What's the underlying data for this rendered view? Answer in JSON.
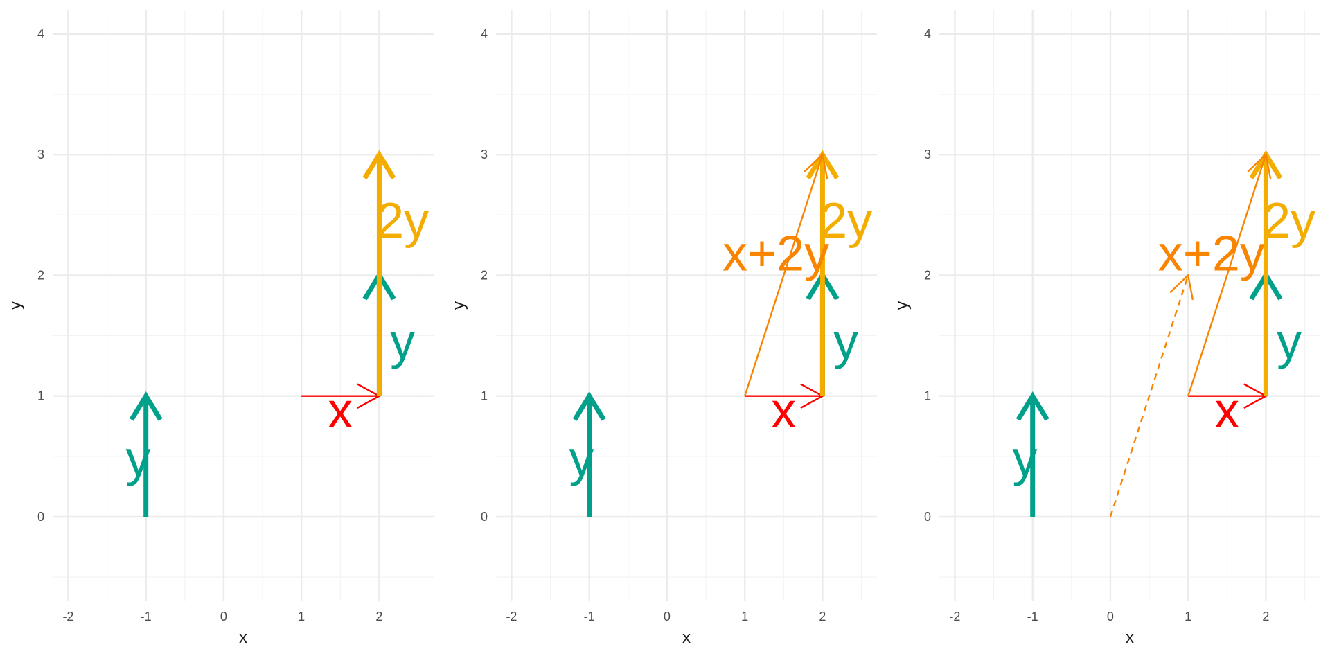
{
  "colors": {
    "x_vector": "#ff0000",
    "y_vector": "#00a08a",
    "two_y_vector": "#f2ad00",
    "sum_vector": "#f98400",
    "grid_major": "#ebebeb",
    "grid_minor": "#f3f3f3",
    "tick_text": "#4d4d4d",
    "axis_title": "#1a1a1a"
  },
  "chart_data": [
    {
      "type": "vector",
      "xlabel": "x",
      "ylabel": "y",
      "xlim": [
        -2.2,
        2.7
      ],
      "ylim": [
        -0.7,
        4.2
      ],
      "x_ticks": [
        "-2",
        "-1",
        "0",
        "1",
        "2"
      ],
      "y_ticks": [
        "0",
        "1",
        "2",
        "3",
        "4"
      ],
      "grid": true,
      "vectors": [
        {
          "label": "y",
          "from": [
            -1,
            0
          ],
          "to": [
            -1,
            1
          ],
          "color_key": "y_vector",
          "style": "thick",
          "label_pos": [
            -1.1,
            0.45
          ]
        },
        {
          "label": "x",
          "from": [
            1,
            1
          ],
          "to": [
            2,
            1
          ],
          "color_key": "x_vector",
          "style": "thin",
          "label_pos": [
            1.5,
            0.85
          ]
        },
        {
          "label": "y",
          "from": [
            2,
            1
          ],
          "to": [
            2,
            2
          ],
          "color_key": "y_vector",
          "style": "thick",
          "label_pos": [
            2.3,
            1.42
          ]
        },
        {
          "label": "2y",
          "from": [
            2,
            1
          ],
          "to": [
            2,
            3
          ],
          "color_key": "two_y_vector",
          "style": "thick",
          "label_pos": [
            2.3,
            2.42
          ]
        }
      ]
    },
    {
      "type": "vector",
      "xlabel": "x",
      "ylabel": "y",
      "xlim": [
        -2.2,
        2.7
      ],
      "ylim": [
        -0.7,
        4.2
      ],
      "x_ticks": [
        "-2",
        "-1",
        "0",
        "1",
        "2"
      ],
      "y_ticks": [
        "0",
        "1",
        "2",
        "3",
        "4"
      ],
      "grid": true,
      "vectors": [
        {
          "label": "y",
          "from": [
            -1,
            0
          ],
          "to": [
            -1,
            1
          ],
          "color_key": "y_vector",
          "style": "thick",
          "label_pos": [
            -1.1,
            0.45
          ]
        },
        {
          "label": "x",
          "from": [
            1,
            1
          ],
          "to": [
            2,
            1
          ],
          "color_key": "x_vector",
          "style": "thin",
          "label_pos": [
            1.5,
            0.85
          ]
        },
        {
          "label": "y",
          "from": [
            2,
            1
          ],
          "to": [
            2,
            2
          ],
          "color_key": "y_vector",
          "style": "thick",
          "label_pos": [
            2.3,
            1.42
          ]
        },
        {
          "label": "2y",
          "from": [
            2,
            1
          ],
          "to": [
            2,
            3
          ],
          "color_key": "two_y_vector",
          "style": "thick",
          "label_pos": [
            2.3,
            2.42
          ]
        },
        {
          "label": "x+2y",
          "from": [
            1,
            1
          ],
          "to": [
            2,
            3
          ],
          "color_key": "sum_vector",
          "style": "thin",
          "label_pos": [
            1.4,
            2.15
          ]
        }
      ]
    },
    {
      "type": "vector",
      "xlabel": "x",
      "ylabel": "y",
      "xlim": [
        -2.2,
        2.7
      ],
      "ylim": [
        -0.7,
        4.2
      ],
      "x_ticks": [
        "-2",
        "-1",
        "0",
        "1",
        "2"
      ],
      "y_ticks": [
        "0",
        "1",
        "2",
        "3",
        "4"
      ],
      "grid": true,
      "vectors": [
        {
          "label": "y",
          "from": [
            -1,
            0
          ],
          "to": [
            -1,
            1
          ],
          "color_key": "y_vector",
          "style": "thick",
          "label_pos": [
            -1.1,
            0.45
          ]
        },
        {
          "label": "x",
          "from": [
            1,
            1
          ],
          "to": [
            2,
            1
          ],
          "color_key": "x_vector",
          "style": "thin",
          "label_pos": [
            1.5,
            0.85
          ]
        },
        {
          "label": "y",
          "from": [
            2,
            1
          ],
          "to": [
            2,
            2
          ],
          "color_key": "y_vector",
          "style": "thick",
          "label_pos": [
            2.3,
            1.42
          ]
        },
        {
          "label": "2y",
          "from": [
            2,
            1
          ],
          "to": [
            2,
            3
          ],
          "color_key": "two_y_vector",
          "style": "thick",
          "label_pos": [
            2.3,
            2.42
          ]
        },
        {
          "label": "x+2y",
          "from": [
            1,
            1
          ],
          "to": [
            2,
            3
          ],
          "color_key": "sum_vector",
          "style": "thin",
          "label_pos": [
            1.3,
            2.15
          ]
        },
        {
          "label": "",
          "from": [
            0,
            0
          ],
          "to": [
            1,
            2
          ],
          "color_key": "sum_vector",
          "style": "dashed",
          "label_pos": null
        }
      ]
    }
  ]
}
